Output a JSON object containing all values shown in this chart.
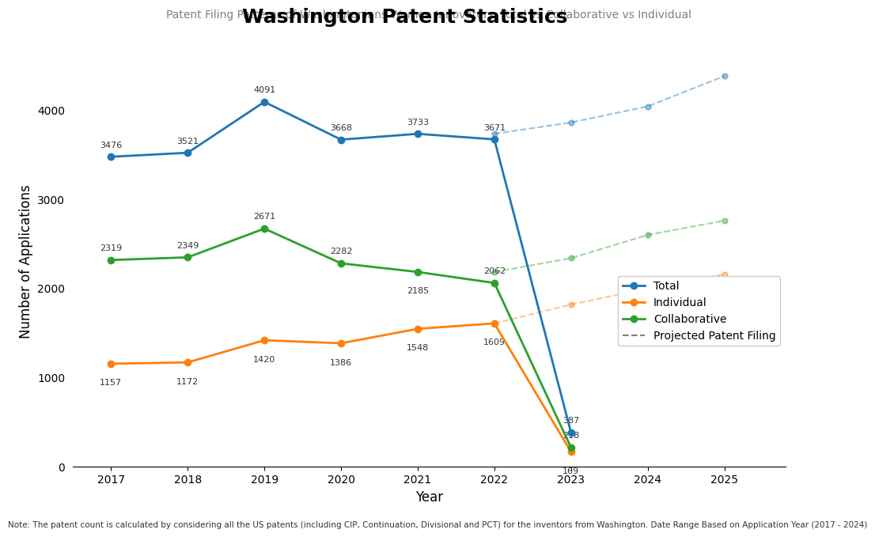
{
  "title": "Washington Patent Statistics",
  "subtitle": "Patent Filing Patterns of Washingtonians Women Innovators: Total vs Collaborative vs Individual",
  "xlabel": "Year",
  "ylabel": "Number of Applications",
  "note": "Note: The patent count is calculated by considering all the US patents (including CIP, Continuation, Divisional and PCT) for the inventors from Washington. Date Range Based on Application Year (2017 - 2024)",
  "years_actual": [
    2017,
    2018,
    2019,
    2020,
    2021,
    2022,
    2023
  ],
  "total": [
    3476,
    3521,
    4091,
    3668,
    3733,
    3671,
    387
  ],
  "individual": [
    1157,
    1172,
    1420,
    1386,
    1548,
    1609,
    169
  ],
  "collaborative": [
    2319,
    2349,
    2671,
    2282,
    2185,
    2062,
    218
  ],
  "proj_years": [
    2022,
    2023,
    2024,
    2025
  ],
  "proj_total": [
    3733,
    3860,
    4040,
    4380
  ],
  "proj_individual": [
    1609,
    1820,
    2000,
    2160
  ],
  "proj_collaborative": [
    2185,
    2340,
    2600,
    2760
  ],
  "color_total": "#1f77b4",
  "color_individual": "#ff7f0e",
  "color_collaborative": "#2ca02c",
  "ylim": [
    0,
    4600
  ],
  "xlim": [
    2016.5,
    2025.8
  ],
  "background_color": "#ffffff"
}
